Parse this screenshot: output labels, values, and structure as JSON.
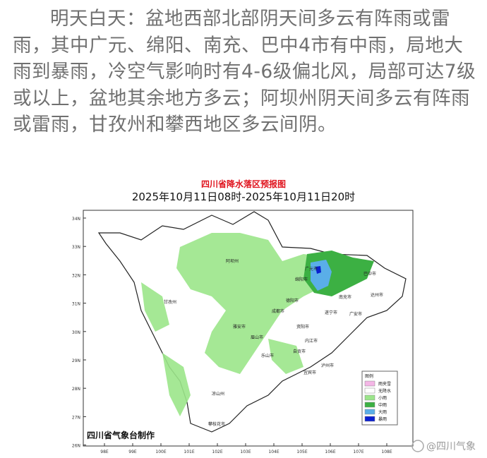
{
  "paragraph": "明天白天：盆地西部北部阴天间多云有阵雨或雷雨，其中广元、绵阳、南充、巴中4市有中雨，局地大雨到暴雨，冷空气影响时有4-6级偏北风，局部可达7级或以上，盆地其余地方多云；阿坝州阴天间多云有阵雨或雷雨，甘孜州和攀西地区多云间阴。",
  "map": {
    "title": "四川省降水落区预报图",
    "subtitle": "2025年10月11日08时-2025年10月11日20时",
    "lat_labels": [
      "34N",
      "33N",
      "32N",
      "31N",
      "30N",
      "29N",
      "28N",
      "27N",
      "26N"
    ],
    "lon_labels": [
      "98E",
      "99E",
      "100E",
      "101E",
      "102E",
      "103E",
      "104E",
      "105E",
      "106E",
      "107E",
      "108E"
    ],
    "cities": [
      "阿坝州",
      "广元市",
      "巴中市",
      "绵阳市",
      "南充市",
      "达州市",
      "德阳市",
      "成都市",
      "遂宁市",
      "广安市",
      "资阳市",
      "内江市",
      "眉山市",
      "乐山市",
      "自贡市",
      "宜宾市",
      "泸州市",
      "雅安市",
      "甘孜州",
      "凉山州",
      "攀枝花市"
    ],
    "legend": {
      "title": "图例",
      "items": [
        {
          "name": "雨夹雪",
          "color": "#f4b6e6"
        },
        {
          "name": "无降水",
          "color": "#ffffff"
        },
        {
          "name": "小雨",
          "color": "#9be58a"
        },
        {
          "name": "中雨",
          "color": "#3cb043"
        },
        {
          "name": "大雨",
          "color": "#5aaee8"
        },
        {
          "name": "暴雨",
          "color": "#0a1fd0"
        }
      ]
    },
    "credit": "四川省气象台制作"
  },
  "watermark": "@四川气象"
}
